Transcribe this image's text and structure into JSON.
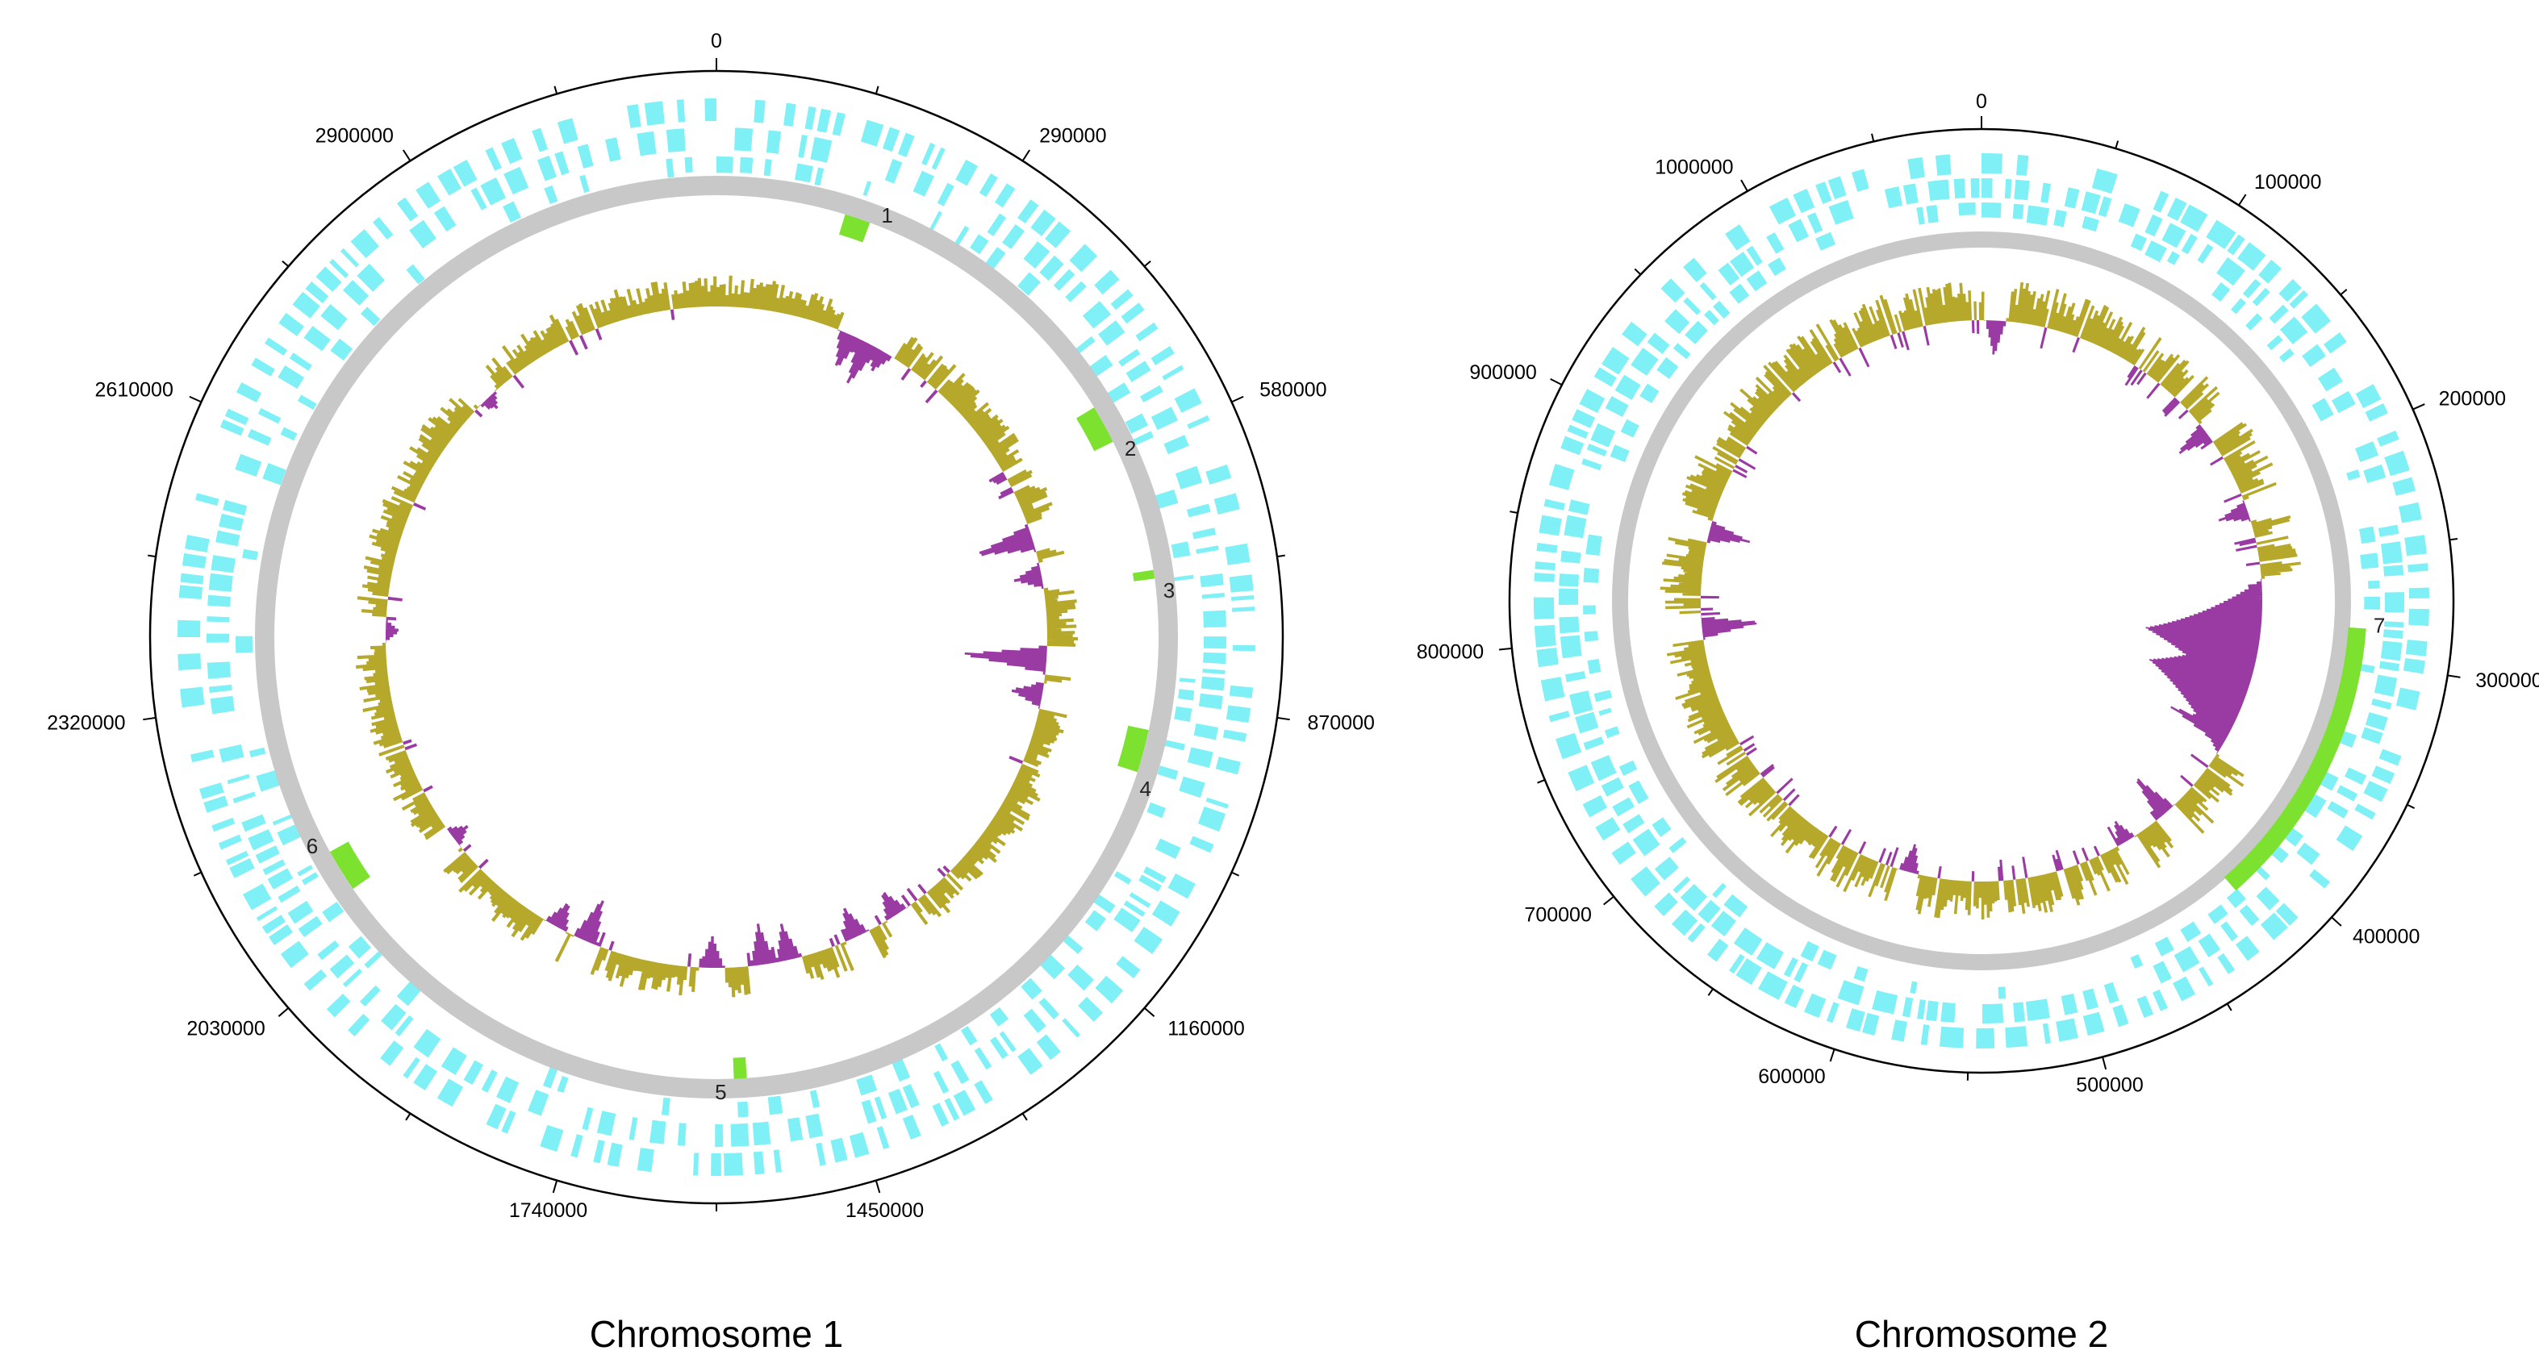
{
  "colors": {
    "gene": "#7ff0f5",
    "backbone": "#c8c8c8",
    "island": "#7de12f",
    "gc_positive": "#b5a82a",
    "gc_negative": "#9a3aa3",
    "outline": "#000000"
  },
  "chromosomes": [
    {
      "id": "chr1",
      "title": "Chromosome 1",
      "length": 3190000,
      "ticks": [
        {
          "value": 0,
          "label": "0"
        },
        {
          "value": 290000,
          "label": "290000"
        },
        {
          "value": 580000,
          "label": "580000"
        },
        {
          "value": 870000,
          "label": "870000"
        },
        {
          "value": 1160000,
          "label": "1160000"
        },
        {
          "value": 1450000,
          "label": "1450000"
        },
        {
          "value": 1740000,
          "label": "1740000"
        },
        {
          "value": 2030000,
          "label": "2030000"
        },
        {
          "value": 2320000,
          "label": "2320000"
        },
        {
          "value": 2610000,
          "label": "2610000"
        },
        {
          "value": 2900000,
          "label": "2900000"
        }
      ],
      "islands": [
        {
          "label": "1",
          "start": 150000,
          "end": 180000
        },
        {
          "label": "2",
          "start": 520000,
          "end": 565000
        },
        {
          "label": "3",
          "start": 720000,
          "end": 730000
        },
        {
          "label": "4",
          "start": 905000,
          "end": 955000
        },
        {
          "label": "5",
          "start": 1560000,
          "end": 1575000
        },
        {
          "label": "6",
          "start": 2085000,
          "end": 2135000
        }
      ],
      "gc_peaks": [
        {
          "pos": 210000,
          "value": -0.45
        },
        {
          "pos": 240000,
          "value": -0.55
        },
        {
          "pos": 265000,
          "value": -0.3
        },
        {
          "pos": 640000,
          "value": -0.7
        },
        {
          "pos": 700000,
          "value": -0.35
        },
        {
          "pos": 830000,
          "value": -1.0
        },
        {
          "pos": 885000,
          "value": -0.4
        },
        {
          "pos": 1300000,
          "value": -0.35
        },
        {
          "pos": 1370000,
          "value": -0.4
        },
        {
          "pos": 1480000,
          "value": -0.45
        },
        {
          "pos": 1520000,
          "value": -0.5
        },
        {
          "pos": 1600000,
          "value": -0.4
        },
        {
          "pos": 1800000,
          "value": -0.55
        },
        {
          "pos": 1850000,
          "value": -0.35
        },
        {
          "pos": 2060000,
          "value": -0.25
        },
        {
          "pos": 2400000,
          "value": -0.2
        },
        {
          "pos": 2800000,
          "value": -0.2
        }
      ]
    },
    {
      "id": "chr2",
      "title": "Chromosome 2",
      "length": 1090000,
      "ticks": [
        {
          "value": 0,
          "label": "0"
        },
        {
          "value": 100000,
          "label": "100000"
        },
        {
          "value": 200000,
          "label": "200000"
        },
        {
          "value": 300000,
          "label": "300000"
        },
        {
          "value": 400000,
          "label": "400000"
        },
        {
          "value": 500000,
          "label": "500000"
        },
        {
          "value": 600000,
          "label": "600000"
        },
        {
          "value": 700000,
          "label": "700000"
        },
        {
          "value": 800000,
          "label": "800000"
        },
        {
          "value": 900000,
          "label": "900000"
        },
        {
          "value": 1000000,
          "label": "1000000"
        }
      ],
      "islands": [
        {
          "label": "7",
          "start": 285000,
          "end": 420000
        }
      ],
      "gc_peaks": [
        {
          "pos": 8000,
          "value": -0.35
        },
        {
          "pos": 160000,
          "value": -0.35
        },
        {
          "pos": 215000,
          "value": -0.3
        },
        {
          "pos": 300000,
          "value": -1.0
        },
        {
          "pos": 330000,
          "value": -0.9
        },
        {
          "pos": 360000,
          "value": -0.6
        },
        {
          "pos": 420000,
          "value": -0.45
        },
        {
          "pos": 450000,
          "value": -0.25
        },
        {
          "pos": 590000,
          "value": -0.3
        },
        {
          "pos": 800000,
          "value": -0.55
        },
        {
          "pos": 860000,
          "value": -0.4
        }
      ]
    }
  ]
}
